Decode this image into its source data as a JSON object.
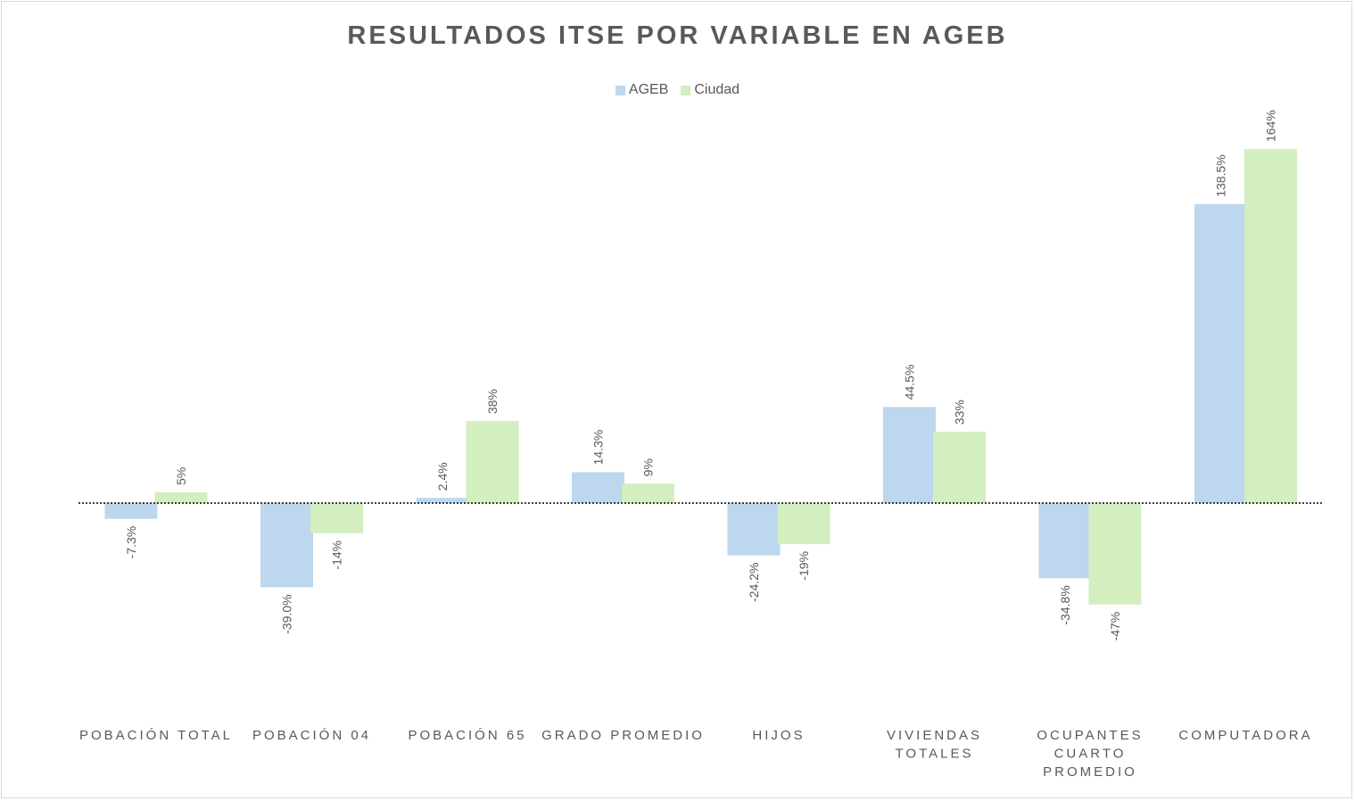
{
  "chart_data": {
    "type": "bar",
    "title": "RESULTADOS  ITSE  POR  VARIABLE  EN  AGEB",
    "categories": [
      [
        "POBACIÓN TOTAL"
      ],
      [
        "POBACIÓN 04"
      ],
      [
        "POBACIÓN 65"
      ],
      [
        "GRADO PROMEDIO"
      ],
      [
        "HIJOS"
      ],
      [
        "VIVIENDAS",
        "TOTALES"
      ],
      [
        "OCUPANTES",
        "CUARTO",
        "PROMEDIO"
      ],
      [
        "COMPUTADORA"
      ]
    ],
    "series": [
      {
        "name": "AGEB",
        "color": "#bdd7ee",
        "values": [
          -7.3,
          -39.0,
          2.4,
          14.3,
          -24.2,
          44.5,
          -34.8,
          138.5
        ],
        "labels": [
          "-7.3%",
          "-39.0%",
          "2.4%",
          "14.3%",
          "-24.2%",
          "44.5%",
          "-34.8%",
          "138.5%"
        ]
      },
      {
        "name": "Ciudad",
        "color": "#d3eebf",
        "values": [
          5,
          -14,
          38,
          9,
          -19,
          33,
          -47,
          164
        ],
        "labels": [
          "5%",
          "-14%",
          "38%",
          "9%",
          "-19%",
          "33%",
          "-47%",
          "164%"
        ]
      }
    ],
    "xlabel": "",
    "ylabel": "",
    "legend_position": "top-center",
    "grid": false,
    "zero_line": "dotted"
  }
}
